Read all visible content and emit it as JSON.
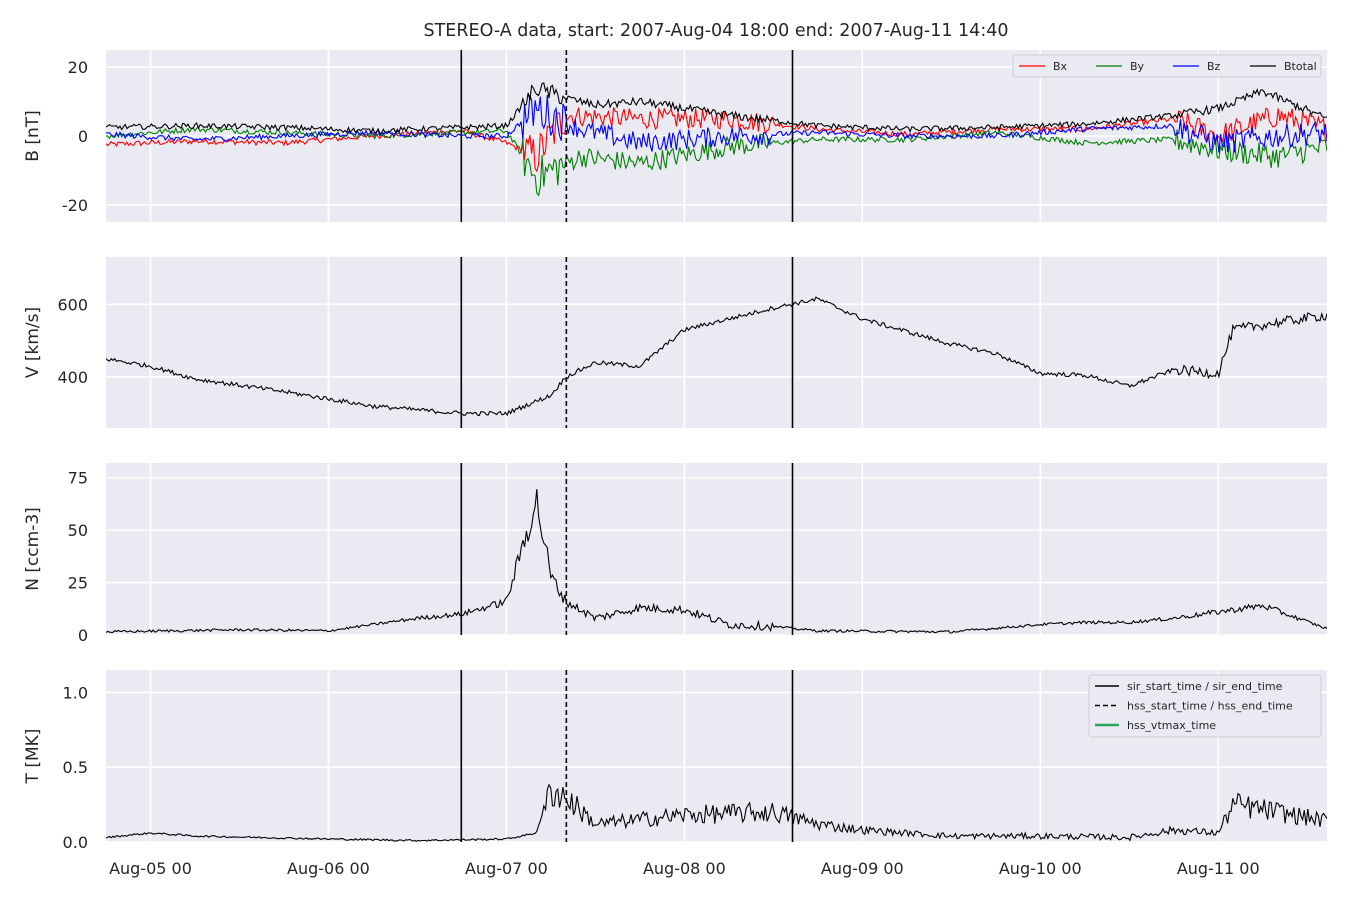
{
  "chart_data": {
    "type": "line",
    "title": "STEREO-A data, start: 2007-Aug-04 18:00  end: 2007-Aug-11 14:40",
    "x_range": [
      "2007-08-04T18:00",
      "2007-08-11T14:40"
    ],
    "x_ticks": [
      {
        "label": "Aug-05 00",
        "time": "2007-08-05T00:00"
      },
      {
        "label": "Aug-06 00",
        "time": "2007-08-06T00:00"
      },
      {
        "label": "Aug-07 00",
        "time": "2007-08-07T00:00"
      },
      {
        "label": "Aug-08 00",
        "time": "2007-08-08T00:00"
      },
      {
        "label": "Aug-09 00",
        "time": "2007-08-09T00:00"
      },
      {
        "label": "Aug-10 00",
        "time": "2007-08-10T00:00"
      },
      {
        "label": "Aug-11 00",
        "time": "2007-08-11T00:00"
      }
    ],
    "grid": true,
    "event_lines": [
      {
        "kind": "sir",
        "style": "solid",
        "times": [
          "2007-08-06T17:55",
          "2007-08-08T14:35"
        ]
      },
      {
        "kind": "hss",
        "style": "dashed",
        "times": [
          "2007-08-07T08:05"
        ]
      }
    ],
    "panels": [
      {
        "id": "b",
        "ylabel": "B [nT]",
        "ylim": [
          -25,
          25
        ],
        "yticks": [
          -20,
          0,
          20
        ],
        "legend_position": "top-right",
        "series": [
          {
            "name": "Bx",
            "color": "#ff0000",
            "points": [
              [
                "2007-08-04T18:00",
                -2.5
              ],
              [
                "2007-08-05T06:00",
                -1.5
              ],
              [
                "2007-08-05T18:00",
                -2
              ],
              [
                "2007-08-06T06:00",
                0
              ],
              [
                "2007-08-06T18:00",
                1.5
              ],
              [
                "2007-08-07T00:00",
                -2
              ],
              [
                "2007-08-07T04:00",
                -6
              ],
              [
                "2007-08-07T08:00",
                6
              ],
              [
                "2007-08-07T18:00",
                5
              ],
              [
                "2007-08-08T06:00",
                5
              ],
              [
                "2007-08-08T18:00",
                2
              ],
              [
                "2007-08-09T06:00",
                0.5
              ],
              [
                "2007-08-09T18:00",
                2
              ],
              [
                "2007-08-10T06:00",
                2
              ],
              [
                "2007-08-10T18:00",
                5
              ],
              [
                "2007-08-11T00:00",
                0
              ],
              [
                "2007-08-11T08:00",
                6
              ],
              [
                "2007-08-11T14:40",
                2
              ]
            ]
          },
          {
            "name": "By",
            "color": "#008000",
            "points": [
              [
                "2007-08-04T18:00",
                0
              ],
              [
                "2007-08-05T06:00",
                2
              ],
              [
                "2007-08-05T18:00",
                1
              ],
              [
                "2007-08-06T06:00",
                0
              ],
              [
                "2007-08-06T18:00",
                1
              ],
              [
                "2007-08-07T00:00",
                1.5
              ],
              [
                "2007-08-07T04:00",
                -12
              ],
              [
                "2007-08-07T10:00",
                -6
              ],
              [
                "2007-08-07T18:00",
                -8
              ],
              [
                "2007-08-08T06:00",
                -3
              ],
              [
                "2007-08-08T18:00",
                -1
              ],
              [
                "2007-08-09T06:00",
                -1
              ],
              [
                "2007-08-09T18:00",
                1
              ],
              [
                "2007-08-10T06:00",
                -2
              ],
              [
                "2007-08-10T18:00",
                -1
              ],
              [
                "2007-08-11T00:00",
                -4
              ],
              [
                "2007-08-11T08:00",
                -6
              ],
              [
                "2007-08-11T14:40",
                -3
              ]
            ]
          },
          {
            "name": "Bz",
            "color": "#0000ff",
            "points": [
              [
                "2007-08-04T18:00",
                0.5
              ],
              [
                "2007-08-05T06:00",
                -1
              ],
              [
                "2007-08-05T18:00",
                0
              ],
              [
                "2007-08-06T06:00",
                1
              ],
              [
                "2007-08-06T18:00",
                0
              ],
              [
                "2007-08-07T00:00",
                0
              ],
              [
                "2007-08-07T04:00",
                8
              ],
              [
                "2007-08-07T10:00",
                2
              ],
              [
                "2007-08-07T18:00",
                -2
              ],
              [
                "2007-08-08T06:00",
                0
              ],
              [
                "2007-08-08T18:00",
                1
              ],
              [
                "2007-08-09T06:00",
                0
              ],
              [
                "2007-08-09T18:00",
                0
              ],
              [
                "2007-08-10T06:00",
                2
              ],
              [
                "2007-08-10T18:00",
                3
              ],
              [
                "2007-08-11T00:00",
                -2
              ],
              [
                "2007-08-11T08:00",
                0
              ],
              [
                "2007-08-11T14:40",
                1
              ]
            ]
          },
          {
            "name": "Btotal",
            "color": "#000000",
            "points": [
              [
                "2007-08-04T18:00",
                2.5
              ],
              [
                "2007-08-05T06:00",
                3
              ],
              [
                "2007-08-05T18:00",
                2.5
              ],
              [
                "2007-08-06T06:00",
                1.5
              ],
              [
                "2007-08-06T18:00",
                2.5
              ],
              [
                "2007-08-07T00:00",
                3
              ],
              [
                "2007-08-07T04:00",
                14
              ],
              [
                "2007-08-07T08:00",
                11
              ],
              [
                "2007-08-07T12:00",
                9
              ],
              [
                "2007-08-07T18:00",
                10
              ],
              [
                "2007-08-08T06:00",
                6
              ],
              [
                "2007-08-08T18:00",
                3
              ],
              [
                "2007-08-09T06:00",
                2
              ],
              [
                "2007-08-09T18:00",
                2.5
              ],
              [
                "2007-08-10T06:00",
                3.5
              ],
              [
                "2007-08-10T18:00",
                6
              ],
              [
                "2007-08-11T00:00",
                8
              ],
              [
                "2007-08-11T06:00",
                13
              ],
              [
                "2007-08-11T14:40",
                5
              ]
            ]
          }
        ]
      },
      {
        "id": "v",
        "ylabel": "V [km/s]",
        "ylim": [
          260,
          730
        ],
        "yticks": [
          400,
          600
        ],
        "series": [
          {
            "name": "",
            "color": "#000000",
            "points": [
              [
                "2007-08-04T18:00",
                450
              ],
              [
                "2007-08-05T00:00",
                430
              ],
              [
                "2007-08-05T06:00",
                395
              ],
              [
                "2007-08-05T18:00",
                360
              ],
              [
                "2007-08-06T06:00",
                320
              ],
              [
                "2007-08-06T18:00",
                300
              ],
              [
                "2007-08-07T00:00",
                300
              ],
              [
                "2007-08-07T06:00",
                350
              ],
              [
                "2007-08-07T08:00",
                400
              ],
              [
                "2007-08-07T12:00",
                440
              ],
              [
                "2007-08-07T18:00",
                430
              ],
              [
                "2007-08-08T00:00",
                530
              ],
              [
                "2007-08-08T12:00",
                590
              ],
              [
                "2007-08-08T18:00",
                615
              ],
              [
                "2007-08-09T00:00",
                560
              ],
              [
                "2007-08-09T12:00",
                490
              ],
              [
                "2007-08-09T18:00",
                465
              ],
              [
                "2007-08-10T00:00",
                410
              ],
              [
                "2007-08-10T06:00",
                405
              ],
              [
                "2007-08-10T12:00",
                375
              ],
              [
                "2007-08-10T18:00",
                420
              ],
              [
                "2007-08-11T00:00",
                410
              ],
              [
                "2007-08-11T02:00",
                530
              ],
              [
                "2007-08-11T08:00",
                550
              ],
              [
                "2007-08-11T14:40",
                570
              ]
            ]
          }
        ]
      },
      {
        "id": "n",
        "ylabel": "N [ccm-3]",
        "ylim": [
          0,
          82
        ],
        "yticks": [
          0,
          25,
          50,
          75
        ],
        "series": [
          {
            "name": "",
            "color": "#000000",
            "points": [
              [
                "2007-08-04T18:00",
                1.5
              ],
              [
                "2007-08-05T12:00",
                2.5
              ],
              [
                "2007-08-06T00:00",
                2
              ],
              [
                "2007-08-06T06:00",
                5
              ],
              [
                "2007-08-06T12:00",
                8
              ],
              [
                "2007-08-06T18:00",
                10
              ],
              [
                "2007-08-07T00:00",
                16
              ],
              [
                "2007-08-07T02:00",
                40
              ],
              [
                "2007-08-07T04:00",
                65
              ],
              [
                "2007-08-07T06:00",
                28
              ],
              [
                "2007-08-07T08:00",
                16
              ],
              [
                "2007-08-07T12:00",
                8
              ],
              [
                "2007-08-07T18:00",
                13
              ],
              [
                "2007-08-08T00:00",
                12
              ],
              [
                "2007-08-08T06:00",
                5
              ],
              [
                "2007-08-08T12:00",
                4
              ],
              [
                "2007-08-08T18:00",
                2
              ],
              [
                "2007-08-09T12:00",
                1.5
              ],
              [
                "2007-08-10T00:00",
                5
              ],
              [
                "2007-08-10T06:00",
                6
              ],
              [
                "2007-08-10T12:00",
                6
              ],
              [
                "2007-08-10T18:00",
                8
              ],
              [
                "2007-08-11T00:00",
                11
              ],
              [
                "2007-08-11T06:00",
                14
              ],
              [
                "2007-08-11T14:40",
                3
              ]
            ]
          }
        ]
      },
      {
        "id": "t",
        "ylabel": "T [MK]",
        "ylim": [
          0,
          1.15
        ],
        "yticks": [
          0.0,
          0.5,
          1.0
        ],
        "legend_position": "top-right",
        "series": [
          {
            "name": "",
            "color": "#000000",
            "points": [
              [
                "2007-08-04T18:00",
                0.03
              ],
              [
                "2007-08-05T00:00",
                0.06
              ],
              [
                "2007-08-05T06:00",
                0.04
              ],
              [
                "2007-08-06T00:00",
                0.02
              ],
              [
                "2007-08-06T12:00",
                0.01
              ],
              [
                "2007-08-07T00:00",
                0.02
              ],
              [
                "2007-08-07T04:00",
                0.06
              ],
              [
                "2007-08-07T06:00",
                0.35
              ],
              [
                "2007-08-07T08:00",
                0.3
              ],
              [
                "2007-08-07T12:00",
                0.12
              ],
              [
                "2007-08-07T18:00",
                0.15
              ],
              [
                "2007-08-08T00:00",
                0.18
              ],
              [
                "2007-08-08T12:00",
                0.2
              ],
              [
                "2007-08-08T18:00",
                0.12
              ],
              [
                "2007-08-09T00:00",
                0.08
              ],
              [
                "2007-08-09T12:00",
                0.04
              ],
              [
                "2007-08-10T00:00",
                0.04
              ],
              [
                "2007-08-10T12:00",
                0.03
              ],
              [
                "2007-08-10T18:00",
                0.08
              ],
              [
                "2007-08-11T00:00",
                0.06
              ],
              [
                "2007-08-11T02:00",
                0.25
              ],
              [
                "2007-08-11T08:00",
                0.2
              ],
              [
                "2007-08-11T14:40",
                0.14
              ]
            ]
          }
        ]
      }
    ],
    "legend_b": [
      {
        "label": "Bx",
        "color": "#ff0000"
      },
      {
        "label": "By",
        "color": "#008000"
      },
      {
        "label": "Bz",
        "color": "#0000ff"
      },
      {
        "label": "Btotal",
        "color": "#000000"
      }
    ],
    "legend_t": [
      {
        "label": "sir_start_time / sir_end_time",
        "color": "#000000",
        "style": "solid"
      },
      {
        "label": "hss_start_time / hss_end_time",
        "color": "#000000",
        "style": "dashed"
      },
      {
        "label": "hss_vtmax_time",
        "color": "#2ca25f",
        "style": "solid"
      }
    ]
  }
}
